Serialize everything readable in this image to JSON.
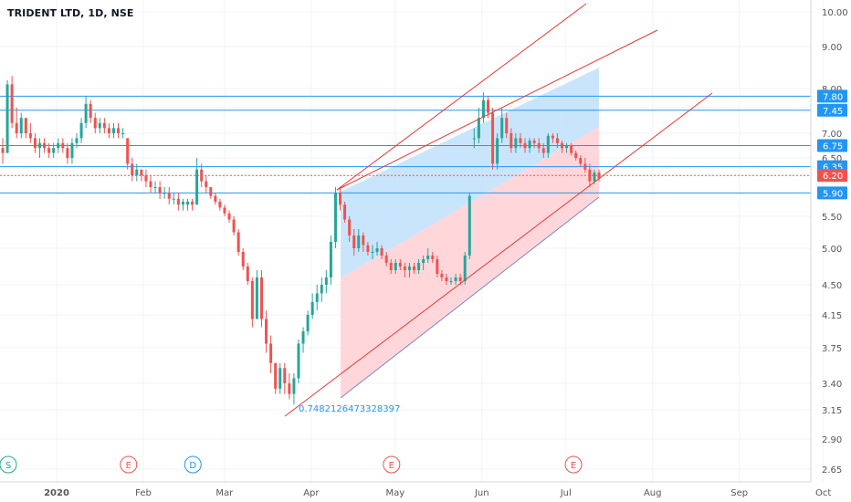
{
  "header": {
    "title": "TRIDENT LTD, 1D, NSE"
  },
  "colors": {
    "up": "#26a69a",
    "down": "#ef5350",
    "hline": "#2196f3",
    "trend": "#e53935",
    "blue_fill": "#bbdefb",
    "red_fill": "#ffcdd2",
    "axis_text": "#555555",
    "grid": "#f0f3fa"
  },
  "chart_data": {
    "type": "candlestick",
    "title": "TRIDENT LTD, 1D, NSE",
    "x_ticks": [
      "2020",
      "Feb",
      "Mar",
      "Apr",
      "May",
      "Jun",
      "Jul",
      "Aug",
      "Sep",
      "Oct"
    ],
    "y_ticks": [
      "10.00",
      "9.00",
      "8.00",
      "7.50",
      "7.00",
      "6.50",
      "5.50",
      "5.00",
      "4.50",
      "4.15",
      "3.75",
      "3.40",
      "3.15",
      "2.90",
      "2.65"
    ],
    "horizontal_levels": [
      {
        "price": 7.8,
        "label": "7.80",
        "style": "solid",
        "color": "#2196f3"
      },
      {
        "price": 7.45,
        "label": "7.45",
        "style": "solid",
        "color": "#2196f3"
      },
      {
        "price": 6.75,
        "label": "6.75",
        "style": "solid",
        "color": "#2196f3"
      },
      {
        "price": 6.35,
        "label": "6.35",
        "style": "solid",
        "color": "#2196f3"
      },
      {
        "price": 6.2,
        "label": "6.20",
        "style": "dotted",
        "color": "#ef5350"
      },
      {
        "price": 5.9,
        "label": "5.90",
        "style": "solid",
        "color": "#2196f3"
      }
    ],
    "events": [
      {
        "letter": "S",
        "date": "2020-01-01",
        "color": "#26a69a"
      },
      {
        "letter": "E",
        "date": "2020-02-13",
        "color": "#ef5350"
      },
      {
        "letter": "D",
        "date": "2020-03-07",
        "color": "#2196f3"
      },
      {
        "letter": "E",
        "date": "2020-05-17",
        "color": "#ef5350"
      },
      {
        "letter": "E",
        "date": "2020-07-21",
        "color": "#ef5350"
      }
    ],
    "annotations": [
      {
        "text": "0.7482126473328397",
        "color": "#2196f3"
      }
    ],
    "candles": [
      [
        6.7,
        6.9,
        6.4,
        6.6
      ],
      [
        6.6,
        8.2,
        6.6,
        8.1
      ],
      [
        8.1,
        8.3,
        7.1,
        7.2
      ],
      [
        7.2,
        7.5,
        6.9,
        7.0
      ],
      [
        7.0,
        7.4,
        6.9,
        7.3
      ],
      [
        7.3,
        7.3,
        6.9,
        7.0
      ],
      [
        7.0,
        7.2,
        6.8,
        6.9
      ],
      [
        6.9,
        7.0,
        6.6,
        6.7
      ],
      [
        6.7,
        6.9,
        6.5,
        6.8
      ],
      [
        6.8,
        6.9,
        6.6,
        6.7
      ],
      [
        6.7,
        6.8,
        6.5,
        6.6
      ],
      [
        6.6,
        6.8,
        6.5,
        6.7
      ],
      [
        6.7,
        6.9,
        6.6,
        6.8
      ],
      [
        6.8,
        6.9,
        6.6,
        6.7
      ],
      [
        6.7,
        6.8,
        6.4,
        6.5
      ],
      [
        6.5,
        6.9,
        6.4,
        6.8
      ],
      [
        6.8,
        7.0,
        6.7,
        6.9
      ],
      [
        6.9,
        7.3,
        6.8,
        7.2
      ],
      [
        7.2,
        7.8,
        7.1,
        7.6
      ],
      [
        7.6,
        7.7,
        7.2,
        7.3
      ],
      [
        7.3,
        7.4,
        7.0,
        7.1
      ],
      [
        7.1,
        7.3,
        7.0,
        7.2
      ],
      [
        7.2,
        7.3,
        7.0,
        7.1
      ],
      [
        7.1,
        7.2,
        6.9,
        7.0
      ],
      [
        7.0,
        7.2,
        6.9,
        7.1
      ],
      [
        7.1,
        7.2,
        6.9,
        7.0
      ],
      [
        7.0,
        7.1,
        6.9,
        7.0
      ],
      [
        6.9,
        6.9,
        6.3,
        6.4
      ],
      [
        6.4,
        6.5,
        6.1,
        6.2
      ],
      [
        6.2,
        6.4,
        6.1,
        6.3
      ],
      [
        6.3,
        6.3,
        6.1,
        6.2
      ],
      [
        6.2,
        6.3,
        6.0,
        6.1
      ],
      [
        6.1,
        6.2,
        5.9,
        6.0
      ],
      [
        6.0,
        6.1,
        5.9,
        6.0
      ],
      [
        6.0,
        6.1,
        5.8,
        5.9
      ],
      [
        5.9,
        6.0,
        5.8,
        5.9
      ],
      [
        5.9,
        6.0,
        5.7,
        5.8
      ],
      [
        5.8,
        5.9,
        5.7,
        5.8
      ],
      [
        5.8,
        5.9,
        5.6,
        5.7
      ],
      [
        5.7,
        5.8,
        5.6,
        5.75
      ],
      [
        5.7,
        5.8,
        5.6,
        5.75
      ],
      [
        5.75,
        5.8,
        5.6,
        5.7
      ],
      [
        5.7,
        6.5,
        5.7,
        6.3
      ],
      [
        6.3,
        6.4,
        6.0,
        6.1
      ],
      [
        6.1,
        6.2,
        5.9,
        6.0
      ],
      [
        6.0,
        6.0,
        5.8,
        5.85
      ],
      [
        5.85,
        5.9,
        5.7,
        5.75
      ],
      [
        5.75,
        5.8,
        5.6,
        5.65
      ],
      [
        5.65,
        5.7,
        5.5,
        5.55
      ],
      [
        5.55,
        5.6,
        5.4,
        5.45
      ],
      [
        5.45,
        5.5,
        5.2,
        5.25
      ],
      [
        5.25,
        5.3,
        4.9,
        4.95
      ],
      [
        4.95,
        5.0,
        4.7,
        4.75
      ],
      [
        4.75,
        4.8,
        4.5,
        4.55
      ],
      [
        4.55,
        4.6,
        4.0,
        4.1
      ],
      [
        4.1,
        4.7,
        4.1,
        4.6
      ],
      [
        4.6,
        4.7,
        4.0,
        4.1
      ],
      [
        4.1,
        4.2,
        3.7,
        3.8
      ],
      [
        3.8,
        3.9,
        3.5,
        3.6
      ],
      [
        3.6,
        3.6,
        3.3,
        3.35
      ],
      [
        3.35,
        3.6,
        3.3,
        3.55
      ],
      [
        3.55,
        3.6,
        3.3,
        3.4
      ],
      [
        3.4,
        3.5,
        3.25,
        3.3
      ],
      [
        3.3,
        3.5,
        3.2,
        3.45
      ],
      [
        3.45,
        3.85,
        3.4,
        3.8
      ],
      [
        3.8,
        4.0,
        3.7,
        3.95
      ],
      [
        3.95,
        4.2,
        3.9,
        4.15
      ],
      [
        4.15,
        4.4,
        4.1,
        4.3
      ],
      [
        4.3,
        4.5,
        4.2,
        4.4
      ],
      [
        4.4,
        4.6,
        4.3,
        4.5
      ],
      [
        4.5,
        4.7,
        4.4,
        4.6
      ],
      [
        4.6,
        5.2,
        4.5,
        5.1
      ],
      [
        5.1,
        6.0,
        5.0,
        5.9
      ],
      [
        5.9,
        6.0,
        5.6,
        5.7
      ],
      [
        5.7,
        5.75,
        5.4,
        5.45
      ],
      [
        5.45,
        5.5,
        5.1,
        5.2
      ],
      [
        5.2,
        5.3,
        4.9,
        5.0
      ],
      [
        5.0,
        5.3,
        4.95,
        5.2
      ],
      [
        5.2,
        5.25,
        4.95,
        5.05
      ],
      [
        5.05,
        5.1,
        4.9,
        4.95
      ],
      [
        4.95,
        5.05,
        4.85,
        4.95
      ],
      [
        4.95,
        5.1,
        4.9,
        5.0
      ],
      [
        5.0,
        5.05,
        4.85,
        4.9
      ],
      [
        4.9,
        4.95,
        4.75,
        4.8
      ],
      [
        4.8,
        4.85,
        4.65,
        4.7
      ],
      [
        4.7,
        4.85,
        4.65,
        4.8
      ],
      [
        4.8,
        4.85,
        4.7,
        4.75
      ],
      [
        4.75,
        4.8,
        4.6,
        4.7
      ],
      [
        4.7,
        4.8,
        4.6,
        4.75
      ],
      [
        4.75,
        4.8,
        4.65,
        4.7
      ],
      [
        4.7,
        4.85,
        4.65,
        4.8
      ],
      [
        4.8,
        4.9,
        4.7,
        4.85
      ],
      [
        4.85,
        5.0,
        4.8,
        4.9
      ],
      [
        4.9,
        4.95,
        4.8,
        4.85
      ],
      [
        4.85,
        4.9,
        4.6,
        4.65
      ],
      [
        4.65,
        4.7,
        4.55,
        4.6
      ],
      [
        4.6,
        4.65,
        4.5,
        4.55
      ],
      [
        4.55,
        4.6,
        4.5,
        4.55
      ],
      [
        4.55,
        4.65,
        4.5,
        4.6
      ],
      [
        4.6,
        4.65,
        4.5,
        4.55
      ],
      [
        4.55,
        4.95,
        4.5,
        4.9
      ],
      [
        4.9,
        5.9,
        4.85,
        5.85
      ],
      [
        6.9,
        7.1,
        6.7,
        6.9
      ],
      [
        6.9,
        7.5,
        6.8,
        7.3
      ],
      [
        7.3,
        7.9,
        7.2,
        7.7
      ],
      [
        7.7,
        7.8,
        7.3,
        7.4
      ],
      [
        7.4,
        7.5,
        6.3,
        6.4
      ],
      [
        6.4,
        7.0,
        6.3,
        6.9
      ],
      [
        6.9,
        7.5,
        6.8,
        7.3
      ],
      [
        7.3,
        7.4,
        6.9,
        7.0
      ],
      [
        7.0,
        7.1,
        6.6,
        6.7
      ],
      [
        6.7,
        7.0,
        6.6,
        6.9
      ],
      [
        6.9,
        7.0,
        6.7,
        6.8
      ],
      [
        6.8,
        6.9,
        6.6,
        6.7
      ],
      [
        6.7,
        6.9,
        6.6,
        6.85
      ],
      [
        6.85,
        6.9,
        6.7,
        6.8
      ],
      [
        6.8,
        6.9,
        6.6,
        6.7
      ],
      [
        6.7,
        6.8,
        6.5,
        6.6
      ],
      [
        6.6,
        7.0,
        6.5,
        6.95
      ],
      [
        6.95,
        7.0,
        6.8,
        6.9
      ],
      [
        6.9,
        7.0,
        6.7,
        6.8
      ],
      [
        6.8,
        6.85,
        6.6,
        6.7
      ],
      [
        6.7,
        6.8,
        6.6,
        6.75
      ],
      [
        6.75,
        6.8,
        6.55,
        6.6
      ],
      [
        6.6,
        6.65,
        6.45,
        6.5
      ],
      [
        6.5,
        6.55,
        6.35,
        6.4
      ],
      [
        6.4,
        6.5,
        6.25,
        6.3
      ],
      [
        6.3,
        6.4,
        6.0,
        6.1
      ],
      [
        6.1,
        6.3,
        6.05,
        6.25
      ],
      [
        6.25,
        6.3,
        6.1,
        6.15
      ]
    ]
  }
}
